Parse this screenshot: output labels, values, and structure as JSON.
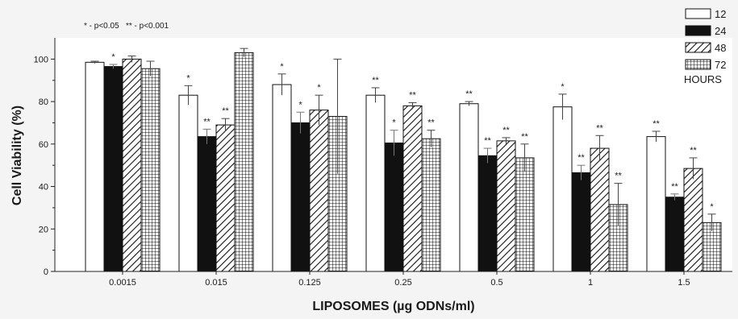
{
  "chart_data": {
    "type": "bar",
    "xlabel": "LIPOSOMES (µg ODNs/ml)",
    "ylabel": "Cell Viability (%)",
    "ylim": [
      0,
      110
    ],
    "yticks": [
      0,
      20,
      40,
      60,
      80,
      100
    ],
    "categories": [
      "0.0015",
      "0.015",
      "0.125",
      "0.25",
      "0.5",
      "1",
      "1.5"
    ],
    "legend_title": "HOURS",
    "legend_position": "top-right",
    "significance_note": "* - p<0.05   ** - p<0.001",
    "series": [
      {
        "name": "12",
        "pattern": "white",
        "values": [
          98.5,
          83,
          88,
          83,
          79,
          77.5,
          63.5
        ],
        "errors": [
          0.5,
          4.5,
          5,
          3.5,
          1,
          6,
          2.5
        ],
        "significance": [
          "",
          "*",
          "*",
          "**",
          "**",
          "*",
          "**"
        ]
      },
      {
        "name": "24",
        "pattern": "black",
        "values": [
          96.5,
          63.5,
          70,
          60.5,
          54.5,
          46.5,
          35
        ],
        "errors": [
          1,
          3.5,
          5,
          6,
          3.5,
          3.5,
          1.5
        ],
        "significance": [
          "*",
          "**",
          "*",
          "*",
          "**",
          "**",
          "**"
        ]
      },
      {
        "name": "48",
        "pattern": "diagonal",
        "values": [
          100,
          69,
          76,
          78,
          61.5,
          58,
          48.5
        ],
        "errors": [
          1.5,
          3,
          7,
          1.5,
          1.5,
          6,
          5
        ],
        "significance": [
          "",
          "**",
          "*",
          "**",
          "**",
          "**",
          "**"
        ]
      },
      {
        "name": "72",
        "pattern": "grid",
        "values": [
          95.5,
          103,
          73,
          62.5,
          53.5,
          31.5,
          23
        ],
        "errors": [
          3.5,
          2,
          27,
          4,
          6.5,
          10,
          4
        ],
        "significance": [
          "",
          "",
          "",
          "**",
          "**",
          "**",
          "*"
        ]
      }
    ]
  }
}
